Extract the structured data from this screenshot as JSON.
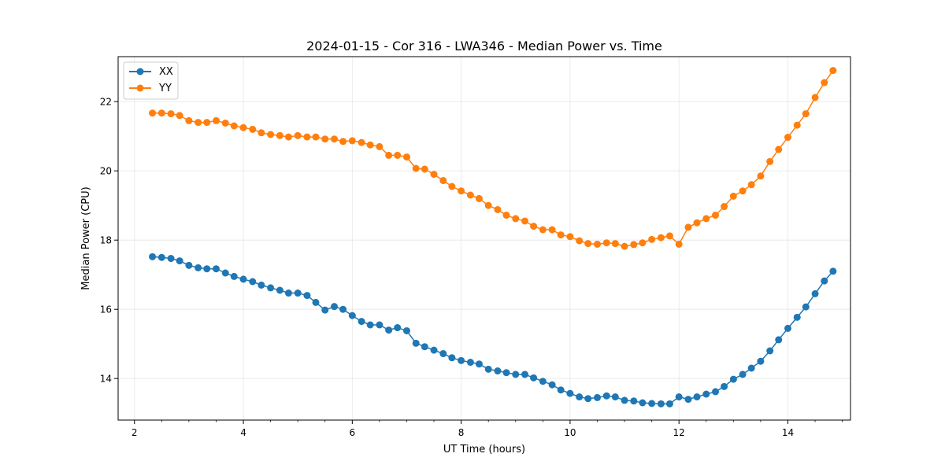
{
  "chart_data": {
    "type": "line",
    "title": "2024-01-15 - Cor 316 - LWA346 - Median Power vs. Time",
    "xlabel": "UT Time (hours)",
    "ylabel": "Median Power (CPU)",
    "xlim": [
      1.7,
      15.15
    ],
    "ylim": [
      12.8,
      23.3
    ],
    "xticks": [
      2,
      4,
      6,
      8,
      10,
      12,
      14
    ],
    "xtick_labels": [
      "2",
      "4",
      "6",
      "8",
      "10",
      "12",
      "14"
    ],
    "yticks": [
      14,
      16,
      18,
      20,
      22
    ],
    "ytick_labels": [
      "14",
      "16",
      "18",
      "20",
      "22"
    ],
    "grid": true,
    "legend_position": "top-left",
    "x": [
      2.33,
      2.5,
      2.67,
      2.83,
      3.0,
      3.17,
      3.33,
      3.5,
      3.67,
      3.83,
      4.0,
      4.17,
      4.33,
      4.5,
      4.67,
      4.83,
      5.0,
      5.17,
      5.33,
      5.5,
      5.67,
      5.83,
      6.0,
      6.17,
      6.33,
      6.5,
      6.67,
      6.83,
      7.0,
      7.17,
      7.33,
      7.5,
      7.67,
      7.83,
      8.0,
      8.17,
      8.33,
      8.5,
      8.67,
      8.83,
      9.0,
      9.17,
      9.33,
      9.5,
      9.67,
      9.83,
      10.0,
      10.17,
      10.33,
      10.5,
      10.67,
      10.83,
      11.0,
      11.17,
      11.33,
      11.5,
      11.67,
      11.83,
      12.0,
      12.17,
      12.33,
      12.5,
      12.67,
      12.83,
      13.0,
      13.17,
      13.33,
      13.5,
      13.67,
      13.83,
      14.0,
      14.17,
      14.33,
      14.5,
      14.67,
      14.83
    ],
    "series": [
      {
        "name": "XX",
        "color": "#1f77b4",
        "values": [
          17.52,
          17.5,
          17.47,
          17.4,
          17.27,
          17.2,
          17.17,
          17.17,
          17.05,
          16.95,
          16.87,
          16.8,
          16.7,
          16.62,
          16.55,
          16.47,
          16.47,
          16.4,
          16.2,
          15.98,
          16.08,
          16.0,
          15.82,
          15.65,
          15.55,
          15.55,
          15.4,
          15.47,
          15.38,
          15.02,
          14.92,
          14.82,
          14.72,
          14.6,
          14.52,
          14.47,
          14.42,
          14.27,
          14.22,
          14.17,
          14.12,
          14.12,
          14.02,
          13.92,
          13.82,
          13.67,
          13.57,
          13.47,
          13.42,
          13.45,
          13.5,
          13.47,
          13.37,
          13.35,
          13.3,
          13.28,
          13.27,
          13.27,
          13.47,
          13.4,
          13.47,
          13.55,
          13.62,
          13.77,
          13.98,
          14.12,
          14.3,
          14.5,
          14.8,
          15.12,
          15.45,
          15.77,
          16.07,
          16.45,
          16.82,
          17.1
        ]
      },
      {
        "name": "YY",
        "color": "#ff7f0e",
        "values": [
          21.67,
          21.67,
          21.65,
          21.6,
          21.45,
          21.4,
          21.4,
          21.45,
          21.38,
          21.3,
          21.25,
          21.2,
          21.1,
          21.05,
          21.02,
          20.98,
          21.02,
          20.98,
          20.98,
          20.92,
          20.92,
          20.85,
          20.87,
          20.82,
          20.75,
          20.7,
          20.45,
          20.45,
          20.4,
          20.07,
          20.05,
          19.9,
          19.72,
          19.55,
          19.42,
          19.3,
          19.2,
          19.0,
          18.88,
          18.72,
          18.62,
          18.55,
          18.4,
          18.3,
          18.3,
          18.15,
          18.1,
          17.98,
          17.9,
          17.88,
          17.92,
          17.9,
          17.82,
          17.87,
          17.92,
          18.02,
          18.07,
          18.12,
          17.88,
          18.37,
          18.5,
          18.62,
          18.72,
          18.97,
          19.27,
          19.42,
          19.6,
          19.85,
          20.27,
          20.62,
          20.97,
          21.32,
          21.65,
          22.12,
          22.55,
          22.9
        ]
      }
    ]
  }
}
